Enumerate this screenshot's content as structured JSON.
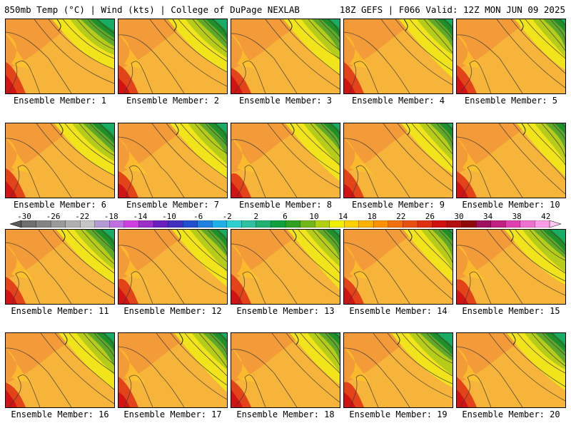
{
  "header": {
    "title_left": "850mb Temp (°C) | Wind (kts) | College of DuPage NEXLAB",
    "title_right": "18Z GEFS | F066 Valid: 12Z MON JUN 09 2025"
  },
  "panels": [
    {
      "label": "Ensemble Member: 1"
    },
    {
      "label": "Ensemble Member: 2"
    },
    {
      "label": "Ensemble Member: 3"
    },
    {
      "label": "Ensemble Member: 4"
    },
    {
      "label": "Ensemble Member: 5"
    },
    {
      "label": "Ensemble Member: 6"
    },
    {
      "label": "Ensemble Member: 7"
    },
    {
      "label": "Ensemble Member: 8"
    },
    {
      "label": "Ensemble Member: 9"
    },
    {
      "label": "Ensemble Member: 10"
    },
    {
      "label": "Ensemble Member: 11"
    },
    {
      "label": "Ensemble Member: 12"
    },
    {
      "label": "Ensemble Member: 13"
    },
    {
      "label": "Ensemble Member: 14"
    },
    {
      "label": "Ensemble Member: 15"
    },
    {
      "label": "Ensemble Member: 16"
    },
    {
      "label": "Ensemble Member: 17"
    },
    {
      "label": "Ensemble Member: 18"
    },
    {
      "label": "Ensemble Member: 19"
    },
    {
      "label": "Ensemble Member: 20"
    }
  ],
  "colorbar": {
    "tick_labels": [
      "-30",
      "-26",
      "-22",
      "-18",
      "-14",
      "-10",
      "-6",
      "-2",
      "2",
      "6",
      "10",
      "14",
      "18",
      "22",
      "26",
      "30",
      "34",
      "38",
      "42"
    ],
    "colors": [
      "#6e6e6e",
      "#848484",
      "#9a9a9a",
      "#b0b0b0",
      "#c6c6c6",
      "#b49ad6",
      "#c070e0",
      "#d040e0",
      "#9a30c8",
      "#6a20c0",
      "#4030c0",
      "#2050d0",
      "#2080e0",
      "#20b0e8",
      "#30d0d0",
      "#30c0a0",
      "#20b070",
      "#10a040",
      "#30a020",
      "#70b818",
      "#b0d010",
      "#f0f000",
      "#ffd000",
      "#ffb000",
      "#ff9000",
      "#f07010",
      "#e85010",
      "#e03010",
      "#d01010",
      "#b01010",
      "#900808",
      "#a01060",
      "#c02080",
      "#e040b0",
      "#f070d0",
      "#ff9ce8"
    ]
  }
}
